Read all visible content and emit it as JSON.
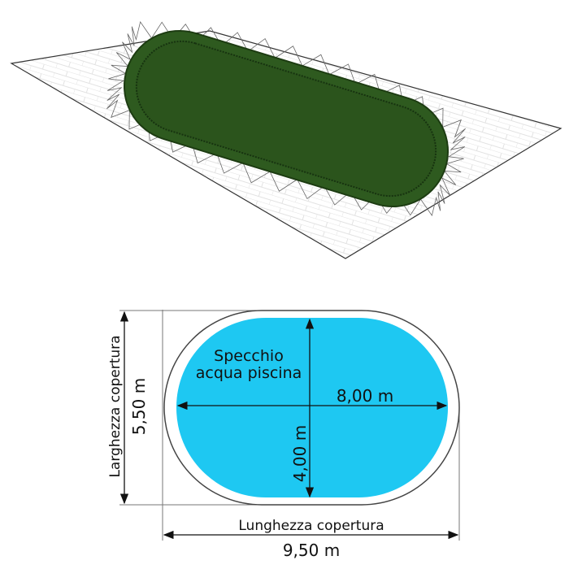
{
  "plan": {
    "pool_label_line1": "Specchio",
    "pool_label_line2": "acqua piscina",
    "pool_length": "8,00 m",
    "pool_width": "4,00 m",
    "cover_width_label": "Larghezza copertura",
    "cover_width": "5,50 m",
    "cover_length_label": "Lunghezza copertura",
    "cover_length": "9,50 m"
  },
  "colors": {
    "water": "#1ec8f2",
    "cover": "#2e5a1f",
    "line": "#444444"
  }
}
